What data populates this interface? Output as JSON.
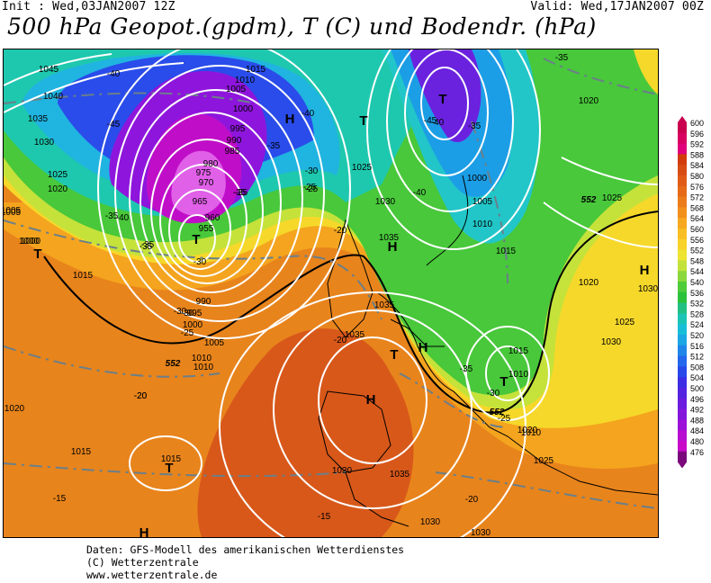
{
  "header": {
    "init": "Init : Wed,03JAN2007 12Z",
    "valid": "Valid: Wed,17JAN2007 00Z",
    "title": "500 hPa Geopot.(gpdm), T (C) und Bodendr. (hPa)"
  },
  "legend": {
    "levels": [
      "600",
      "596",
      "592",
      "588",
      "584",
      "580",
      "576",
      "572",
      "568",
      "564",
      "560",
      "556",
      "552",
      "548",
      "544",
      "540",
      "536",
      "532",
      "528",
      "524",
      "520",
      "516",
      "512",
      "508",
      "504",
      "500",
      "496",
      "492",
      "488",
      "484",
      "480",
      "476"
    ],
    "colors": [
      "#c8004e",
      "#d80060",
      "#e0007a",
      "#d23c0c",
      "#d84c14",
      "#e05a16",
      "#e66a18",
      "#ec7c1a",
      "#f2901c",
      "#f6a820",
      "#f8be24",
      "#f8d22a",
      "#eee434",
      "#c2e23a",
      "#8ad83c",
      "#4ecc3a",
      "#2cc23c",
      "#22c082",
      "#1cc4b4",
      "#18bed8",
      "#1ca6e4",
      "#2086ea",
      "#2466ec",
      "#2848ea",
      "#3c2ee4",
      "#5424e0",
      "#6c1cde",
      "#8416dc",
      "#9c12d8",
      "#b80ed2",
      "#c80ac8",
      "#7a0a7c"
    ]
  },
  "map": {
    "isobars": [
      "1045",
      "1040",
      "1035",
      "1030",
      "1025",
      "1020",
      "1015",
      "1010",
      "1005",
      "1000",
      "995",
      "990",
      "985",
      "980",
      "975",
      "970",
      "965",
      "960",
      "955",
      "1015",
      "1010",
      "1005",
      "1000",
      "990",
      "995",
      "1000",
      "1005",
      "1010",
      "1015",
      "1020",
      "1025",
      "1030",
      "1035",
      "1035",
      "1035",
      "1020",
      "1025",
      "1030",
      "1015",
      "1010",
      "1020",
      "1025",
      "1030",
      "1015",
      "1030",
      "1035",
      "1030",
      "1030",
      "1005",
      "1010",
      "1000",
      "1000",
      "1010",
      "1005",
      "1020",
      "1015",
      "1025"
    ],
    "temperatures": [
      "-40",
      "-45",
      "-40",
      "-35",
      "-40",
      "-35",
      "-35",
      "-30",
      "-30",
      "-30",
      "-25",
      "-25",
      "-20",
      "-20",
      "-35",
      "-40",
      "-45",
      "-35",
      "-40",
      "-35",
      "-30",
      "-25",
      "-20",
      "-20",
      "-15",
      "-15",
      "-20",
      "-35",
      "-30",
      "-25",
      "-35",
      "-35"
    ],
    "highs": [
      "H",
      "H",
      "H",
      "H",
      "H",
      "H"
    ],
    "lows": [
      "T",
      "T",
      "T",
      "T",
      "T",
      "T",
      "T"
    ],
    "geopot_552_labels": [
      "552",
      "552",
      "552"
    ]
  },
  "footer": {
    "line1": "Daten: GFS-Modell des amerikanischen Wetterdienstes",
    "line2": "(C) Wetterzentrale",
    "line3": "www.wetterzentrale.de"
  }
}
